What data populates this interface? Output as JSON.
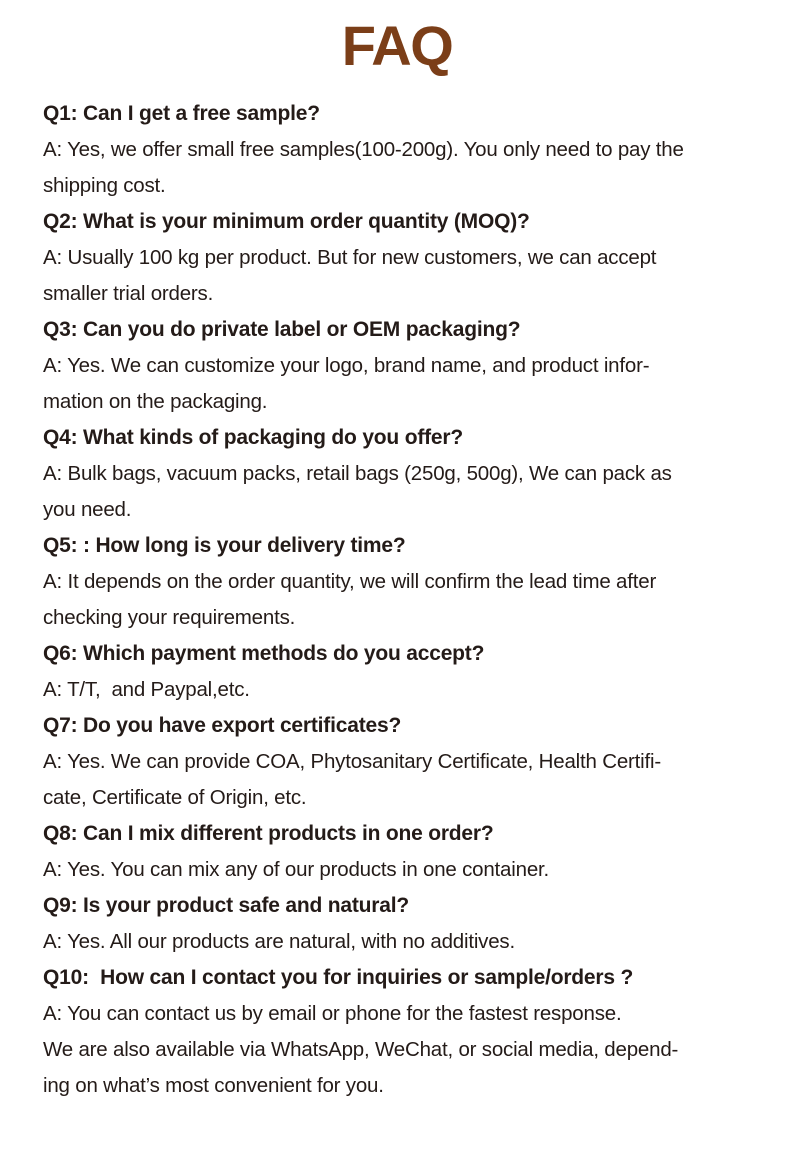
{
  "page": {
    "title": "FAQ",
    "colors": {
      "title": "#7b3e18",
      "text": "#241b18",
      "background": "#ffffff"
    }
  },
  "faq": {
    "items": [
      {
        "question": "Q1: Can I get a free sample?",
        "answer": "A: Yes, we offer small free samples(100-200g). You only need to pay the\nshipping cost."
      },
      {
        "question": "Q2: What is your minimum order quantity (MOQ)?",
        "answer": "A: Usually 100 kg per product. But for new customers, we can accept\nsmaller trial orders."
      },
      {
        "question": "Q3: Can you do private label or OEM packaging?",
        "answer": "A: Yes. We can customize your logo, brand name, and product infor-\nmation on the packaging."
      },
      {
        "question": "Q4: What kinds of packaging do you offer?",
        "answer": "A: Bulk bags, vacuum packs, retail bags (250g, 500g), We can pack as\nyou need."
      },
      {
        "question": "Q5: : How long is your delivery time?",
        "answer": "A: It depends on the order quantity, we will confirm the lead time after\nchecking your requirements."
      },
      {
        "question": "Q6: Which payment methods do you accept?",
        "answer": "A: T/T,  and Paypal,etc."
      },
      {
        "question": "Q7: Do you have export certificates?",
        "answer": "A: Yes. We can provide COA, Phytosanitary Certificate, Health Certifi-\ncate, Certificate of Origin, etc."
      },
      {
        "question": "Q8: Can I mix different products in one order?",
        "answer": "A: Yes. You can mix any of our products in one container."
      },
      {
        "question": "Q9: Is your product safe and natural?",
        "answer": "A: Yes. All our products are natural, with no additives."
      },
      {
        "question": "Q10:  How can I contact you for inquiries or sample/orders ?",
        "answer": "A: You can contact us by email or phone for the fastest response.\nWe are also available via WhatsApp, WeChat, or social media, depend-\ning on what’s most convenient for you."
      }
    ]
  }
}
